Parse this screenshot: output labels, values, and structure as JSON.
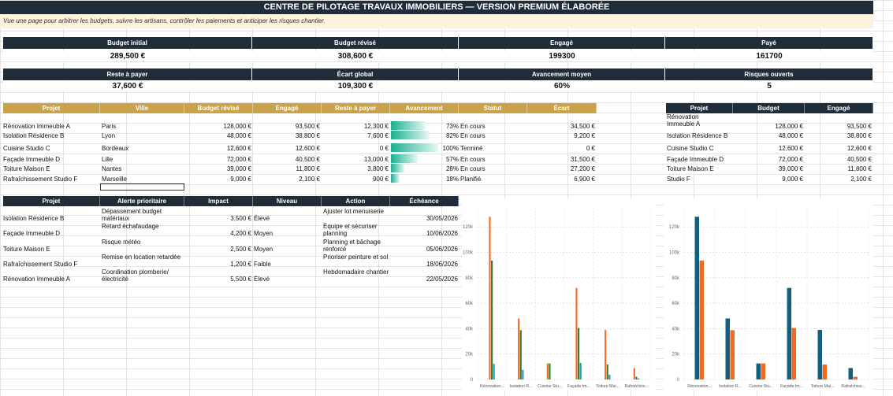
{
  "title": "CENTRE DE PILOTAGE TRAVAUX IMMOBILIERS — VERSION PREMIUM ÉLABORÉE",
  "subtitle": "Vue une page pour arbitrer les budgets, suivre les artisans, contrôler les paiements et anticiper les risques chantier.",
  "kpis_row1": [
    {
      "label": "Budget initial",
      "value": "289,500 €"
    },
    {
      "label": "Budget révisé",
      "value": "308,600 €"
    },
    {
      "label": "Engagé",
      "value": "199300"
    },
    {
      "label": "Payé",
      "value": "161700"
    }
  ],
  "kpis_row2": [
    {
      "label": "Reste à payer",
      "value": "37,600 €"
    },
    {
      "label": "Écart global",
      "value": "109,300 €"
    },
    {
      "label": "Avancement moyen",
      "value": "60%"
    },
    {
      "label": "Risques ouverts",
      "value": "5"
    }
  ],
  "projects_table": {
    "headers": [
      "Projet",
      "Ville",
      "Budget révisé",
      "Engagé",
      "Reste à payer",
      "Avancement",
      "Statut",
      "Écart"
    ],
    "rows": [
      {
        "projet": "Rénovation Immeuble A",
        "ville": "Paris",
        "budget": "128,000 €",
        "engage": "93,500 €",
        "reste": "12,300 €",
        "avancement": "73%",
        "progress": 0.73,
        "statut": "En cours",
        "ecart": "34,500 €"
      },
      {
        "projet": "Isolation Résidence B",
        "ville": "Lyon",
        "budget": "48,000 €",
        "engage": "38,800 €",
        "reste": "7,600 €",
        "avancement": "82%",
        "progress": 0.82,
        "statut": "En cours",
        "ecart": "9,200 €"
      },
      {
        "projet": "Cuisine Studio C",
        "ville": "Bordeaux",
        "budget": "12,600 €",
        "engage": "12,600 €",
        "reste": "0 €",
        "avancement": "100%",
        "progress": 1.0,
        "statut": "Terminé",
        "ecart": "0 €"
      },
      {
        "projet": "Façade Immeuble D",
        "ville": "Lille",
        "budget": "72,000 €",
        "engage": "40,500 €",
        "reste": "13,000 €",
        "avancement": "57%",
        "progress": 0.57,
        "statut": "En cours",
        "ecart": "31,500 €"
      },
      {
        "projet": "Toiture Maison E",
        "ville": "Nantes",
        "budget": "39,000 €",
        "engage": "11,800 €",
        "reste": "3,800 €",
        "avancement": "28%",
        "progress": 0.28,
        "statut": "En cours",
        "ecart": "27,200 €"
      },
      {
        "projet": "Rafraîchissement Studio F",
        "ville": "Marseille",
        "budget": "9,000 €",
        "engage": "2,100 €",
        "reste": "900 €",
        "avancement": "18%",
        "progress": 0.18,
        "statut": "Planifié",
        "ecart": "6,900 €"
      }
    ]
  },
  "side_table": {
    "headers": [
      "Projet",
      "Budget",
      "Engagé"
    ],
    "rows": [
      {
        "projet": "Rénovation Immeuble A",
        "budget": "128,000 €",
        "engage": "93,500 €"
      },
      {
        "projet": "Isolation Résidence B",
        "budget": "48,000 €",
        "engage": "38,800 €"
      },
      {
        "projet": "Cuisine Studio C",
        "budget": "12,600 €",
        "engage": "12,600 €"
      },
      {
        "projet": "Façade Immeuble D",
        "budget": "72,000 €",
        "engage": "40,500 €"
      },
      {
        "projet": "Toiture Maison E",
        "budget": "39,000 €",
        "engage": "11,800 €"
      },
      {
        "projet": "Studio F",
        "budget": "9,000 €",
        "engage": "2,100 €"
      }
    ]
  },
  "risks_table": {
    "headers": [
      "Projet",
      "Alerte prioritaire",
      "Impact",
      "Niveau",
      "Action",
      "Échéance"
    ],
    "rows": [
      {
        "projet": "Isolation Résidence B",
        "alerte": "Dépassement budget matériaux",
        "impact": "3,500 €",
        "niveau": "Élevé",
        "action": "Ajuster lot menuiserie",
        "echeance": "30/05/2026"
      },
      {
        "projet": "Façade Immeuble D",
        "alerte": "Retard échafaudage",
        "impact": "4,200 €",
        "niveau": "Moyen",
        "action": "Équipe et sécuriser planning",
        "echeance": "10/06/2026"
      },
      {
        "projet": "Toiture Maison E",
        "alerte": "Risque météo",
        "impact": "2,500 €",
        "niveau": "Moyen",
        "action": "Planning et bâchage renforcé",
        "echeance": "05/06/2026"
      },
      {
        "projet": "Rafraîchissement Studio F",
        "alerte": "Remise en location retardée",
        "impact": "1,200 €",
        "niveau": "Faible",
        "action": "Prioriser peinture et sol",
        "echeance": "18/06/2026"
      },
      {
        "projet": "Rénovation Immeuble A",
        "alerte": "Coordination plomberie/électricité",
        "impact": "5,500 €",
        "niveau": "Élevé",
        "action": "Hebdomadaire chantier",
        "echeance": "22/05/2026"
      }
    ]
  },
  "chart_data": [
    {
      "type": "bar",
      "categories": [
        "Rénovation...",
        "Isolation R...",
        "Cuisine Stu...",
        "Façade Im...",
        "Toiture Mai...",
        "Rafraîchiss..."
      ],
      "ylim": [
        0,
        135000
      ],
      "yticks": [
        "0",
        "20k",
        "40k",
        "60k",
        "80k",
        "100k",
        "120k"
      ],
      "series": [
        {
          "color": "#f26a21",
          "values": [
            128000,
            48000,
            12600,
            72000,
            39000,
            9000
          ]
        },
        {
          "color": "#2e7d32",
          "values": [
            93500,
            38800,
            12600,
            40500,
            11800,
            2100
          ]
        },
        {
          "color": "#1e9bb8",
          "values": [
            12300,
            7600,
            0,
            13000,
            3800,
            900
          ]
        }
      ]
    },
    {
      "type": "bar",
      "categories": [
        "Rénovation...",
        "Isolation R...",
        "Cuisine Stu...",
        "Façade Im...",
        "Toiture Mai...",
        "Rafraîchiss..."
      ],
      "ylim": [
        0,
        135000
      ],
      "yticks": [
        "0",
        "20k",
        "40k",
        "60k",
        "80k",
        "100k",
        "120k"
      ],
      "series": [
        {
          "color": "#135f7f",
          "values": [
            128000,
            48000,
            12600,
            72000,
            39000,
            9000
          ]
        },
        {
          "color": "#f26a21",
          "values": [
            93500,
            38800,
            12600,
            40500,
            11800,
            2100
          ]
        }
      ]
    }
  ]
}
